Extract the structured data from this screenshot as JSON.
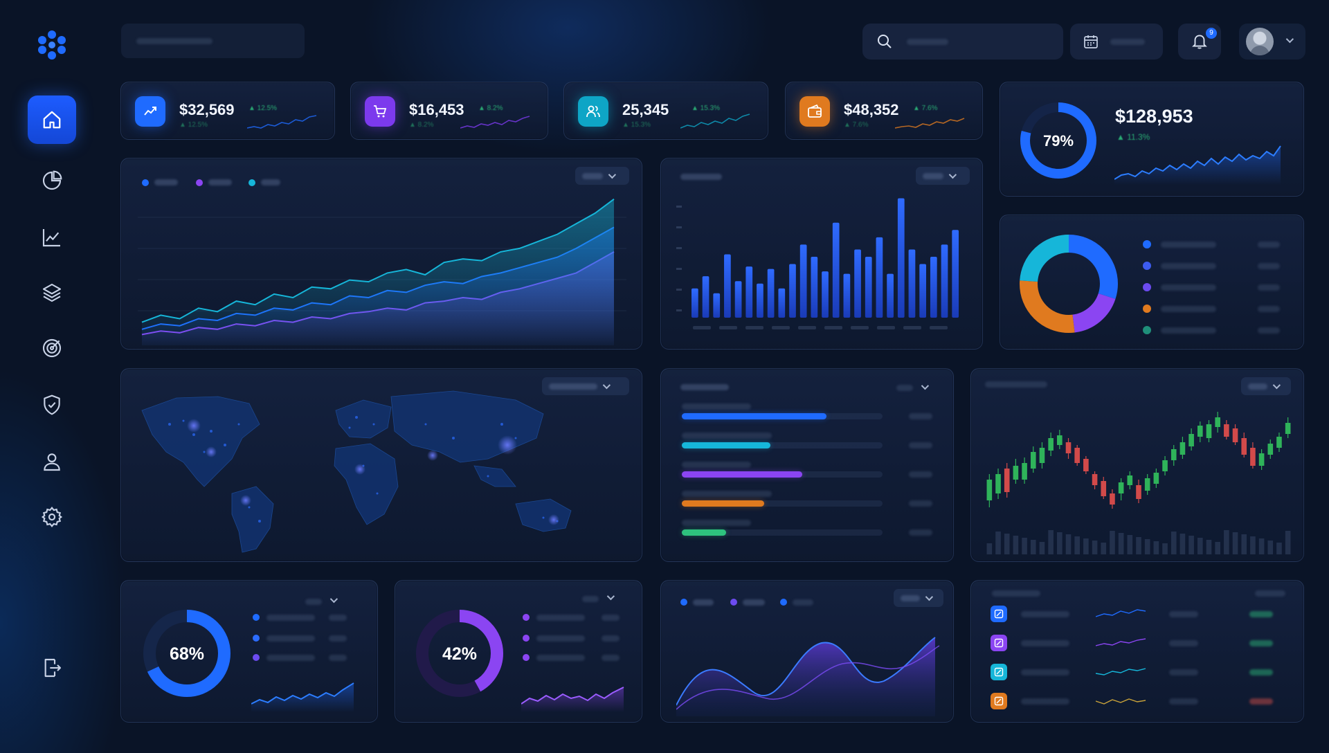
{
  "sidebar": {
    "items": [
      {
        "name": "home",
        "active": true
      },
      {
        "name": "analytics-pie"
      },
      {
        "name": "trends"
      },
      {
        "name": "layers"
      },
      {
        "name": "target"
      },
      {
        "name": "security"
      },
      {
        "name": "user"
      },
      {
        "name": "settings"
      }
    ],
    "logout": "logout"
  },
  "header": {
    "notifications_count": "9"
  },
  "stats": [
    {
      "value": "$32,569",
      "change": "▲ 12.5%",
      "color": "#1f6bff",
      "icon": "trend-icon"
    },
    {
      "value": "$16,453",
      "change": "▲ 8.2%",
      "color": "#7c3aed",
      "icon": "cart-icon"
    },
    {
      "value": "25,345",
      "change": "▲ 15.3%",
      "color": "#0ea5c6",
      "icon": "users-icon"
    },
    {
      "value": "$48,352",
      "change": "▲ 7.6%",
      "color": "#e07a1f",
      "icon": "wallet-icon"
    }
  ],
  "summary": {
    "percent": "79%",
    "value": "$128,953",
    "change": "▲ 11.3%"
  },
  "gauges": [
    {
      "percent": "68%",
      "value": 0.68,
      "color": "#1f6bff"
    },
    {
      "percent": "42%",
      "value": 0.42,
      "color": "#8b45f2"
    }
  ],
  "colors": {
    "blue": "#1f6bff",
    "violet": "#8b45f2",
    "cyan": "#16b6d9",
    "orange": "#e07a1f",
    "green": "#2ec27e",
    "red": "#e0524a"
  },
  "chart_data": [
    {
      "type": "area",
      "series": [
        {
          "values": [
            10,
            14,
            12,
            18,
            16,
            22,
            20,
            26,
            24,
            30,
            29,
            34,
            33,
            38,
            40,
            37,
            44,
            46,
            45,
            50,
            52,
            56,
            60,
            66,
            72,
            80
          ]
        },
        {
          "values": [
            6,
            9,
            8,
            12,
            11,
            15,
            14,
            18,
            17,
            21,
            20,
            25,
            24,
            28,
            27,
            31,
            33,
            32,
            36,
            38,
            41,
            44,
            47,
            52,
            58,
            64
          ]
        },
        {
          "values": [
            3,
            5,
            4,
            7,
            6,
            9,
            8,
            11,
            10,
            13,
            12,
            15,
            16,
            18,
            17,
            21,
            22,
            24,
            23,
            27,
            29,
            32,
            35,
            38,
            44,
            50
          ]
        }
      ]
    },
    {
      "type": "bar",
      "values": [
        24,
        34,
        20,
        52,
        30,
        42,
        28,
        40,
        24,
        44,
        60,
        50,
        38,
        78,
        36,
        56,
        50,
        66,
        36,
        98,
        56,
        44,
        50,
        60,
        72
      ]
    },
    {
      "type": "pie",
      "values": [
        30,
        18,
        28,
        24
      ],
      "colors": [
        "#1f6bff",
        "#8b45f2",
        "#e07a1f",
        "#16b6d9"
      ]
    },
    {
      "type": "bar",
      "orientation": "horizontal",
      "values": [
        0.72,
        0.44,
        0.6,
        0.41,
        0.22
      ],
      "colors": [
        "#1f6bff",
        "#16b6d9",
        "#8b45f2",
        "#e07a1f",
        "#2ec27e"
      ]
    }
  ]
}
